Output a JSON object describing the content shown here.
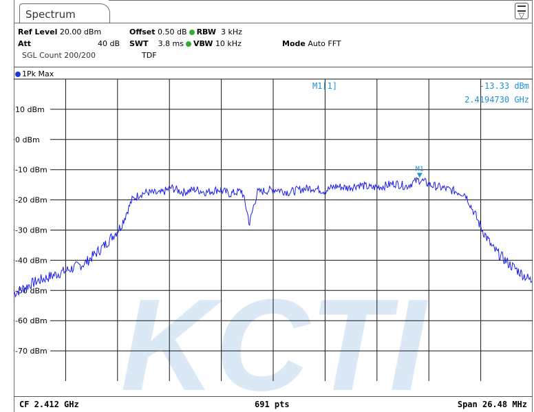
{
  "tab": {
    "label": "Spectrum"
  },
  "settings": {
    "ref_level_label": "Ref Level",
    "ref_level_value": "20.00 dBm",
    "att_label": "Att",
    "att_value": "40 dB",
    "sgl_count": "SGL Count 200/200",
    "offset_label": "Offset",
    "offset_value": "0.50 dB",
    "swt_label": "SWT",
    "swt_value": "3.8 ms",
    "tdf": "TDF",
    "rbw_label": "RBW",
    "rbw_value": "3 kHz",
    "vbw_label": "VBW",
    "vbw_value": "10 kHz",
    "mode_label": "Mode",
    "mode_value": "Auto FFT",
    "dot_color": "#33aa33"
  },
  "trace": {
    "label": "1Pk Max",
    "color": "#1a1aee"
  },
  "marker": {
    "id": "M1[1]",
    "level": "-13.33 dBm",
    "freq": "2.4194730 GHz",
    "label": "M1",
    "x_ghz": 2.419473,
    "y_dbm": -13.33,
    "color": "#1e90d8"
  },
  "status": {
    "cf": "CF 2.412 GHz",
    "pts": "691 pts",
    "span": "Span 26.48 MHz"
  },
  "watermark": {
    "text": "KCTI",
    "color": "#5a9ad8"
  },
  "chart_data": {
    "type": "line",
    "title": "",
    "xlabel": "",
    "ylabel": "",
    "x_units": "GHz",
    "xlim": [
      2.39876,
      2.42524
    ],
    "ylim": [
      -80,
      20
    ],
    "grid": true,
    "y_ticks": [
      {
        "value": 10,
        "label": "10 dBm"
      },
      {
        "value": 0,
        "label": "0 dBm"
      },
      {
        "value": -10,
        "label": "-10 dBm"
      },
      {
        "value": -20,
        "label": "-20 dBm"
      },
      {
        "value": -30,
        "label": "-30 dBm"
      },
      {
        "value": -40,
        "label": "-40 dBm"
      },
      {
        "value": -50,
        "label": "-50 dBm"
      },
      {
        "value": -60,
        "label": "-60 dBm"
      },
      {
        "value": -70,
        "label": "-70 dBm"
      }
    ],
    "series": [
      {
        "name": "1Pk Max",
        "x": [
          2.39876,
          2.3999,
          2.4012,
          2.4024,
          2.4034,
          2.4042,
          2.4048,
          2.4052,
          2.4056,
          2.4062,
          2.4068,
          2.4074,
          2.408,
          2.4086,
          2.4092,
          2.4098,
          2.4104,
          2.4106,
          2.4108,
          2.411,
          2.4112,
          2.4116,
          2.4122,
          2.4128,
          2.4134,
          2.414,
          2.4146,
          2.4152,
          2.4158,
          2.4164,
          2.417,
          2.4176,
          2.4182,
          2.4188,
          2.4192,
          2.4195,
          2.42,
          2.4206,
          2.4212,
          2.4218,
          2.4226,
          2.4232,
          2.424,
          2.4252
        ],
        "y": [
          -51,
          -47,
          -44,
          -41,
          -35,
          -29,
          -20,
          -18,
          -17.5,
          -18,
          -16,
          -17.5,
          -16.5,
          -17.5,
          -16.5,
          -18,
          -17,
          -22,
          -28,
          -22,
          -17.5,
          -17,
          -16.5,
          -17.5,
          -16.5,
          -16,
          -17,
          -15.5,
          -16,
          -15,
          -16,
          -15.5,
          -14.5,
          -15.5,
          -14,
          -13.33,
          -15,
          -16,
          -17,
          -18,
          -29,
          -36,
          -41,
          -47
        ]
      }
    ]
  }
}
